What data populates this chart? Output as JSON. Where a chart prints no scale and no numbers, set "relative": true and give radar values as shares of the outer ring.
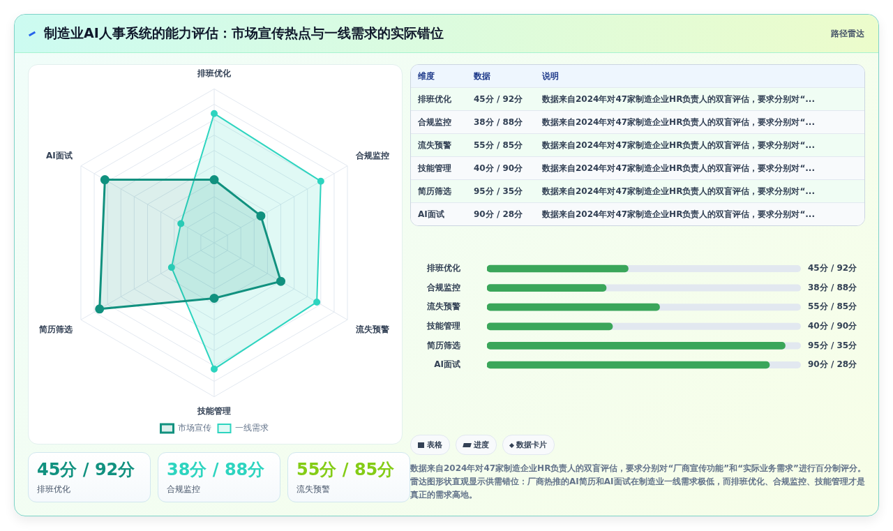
{
  "chart_data": [
    {
      "type": "other",
      "title": "制造业AI人事系统的能力评估：市场宣传热点与一线需求的实际错位",
      "subtitle": "路径雷达"
    },
    {
      "type": "radar",
      "relative": true,
      "categories": [
        "排班优化",
        "合规监控",
        "流失预警",
        "技能管理",
        "简历筛选",
        "AI面试"
      ],
      "series": [
        {
          "name": "市场宣传",
          "color": "#11917f",
          "values": [
            0.41,
            0.35,
            0.5,
            0.36,
            0.86,
            0.82
          ]
        },
        {
          "name": "一线需求",
          "color": "#2dd4bf",
          "values": [
            0.84,
            0.8,
            0.77,
            0.82,
            0.32,
            0.25
          ]
        }
      ],
      "grid": true,
      "legend": "bottom",
      "marker": "circle"
    },
    {
      "type": "other",
      "annotations": [
        "维度",
        "数据",
        "说明",
        "排班优化",
        "45分 / 92分",
        "数据来自2024年对47家制造企业HR负责人的双盲评估，要求分别对“...",
        "合规监控",
        "38分 / 88分",
        "数据来自2024年对47家制造企业HR负责人的双盲评估，要求分别对“...",
        "流失预警",
        "55分 / 85分",
        "数据来自2024年对47家制造企业HR负责人的双盲评估，要求分别对“...",
        "技能管理",
        "40分 / 90分",
        "数据来自2024年对47家制造企业HR负责人的双盲评估，要求分别对“...",
        "简历筛选",
        "95分 / 35分",
        "数据来自2024年对47家制造企业HR负责人的双盲评估，要求分别对“...",
        "AI面试",
        "90分 / 28分",
        "数据来自2024年对47家制造企业HR负责人的双盲评估，要求分别对“..."
      ]
    },
    {
      "type": "bar",
      "orientation": "horizontal",
      "categories": [
        "排班优化",
        "合规监控",
        "流失预警",
        "技能管理",
        "简历筛选",
        "AI面试"
      ],
      "values": [
        45,
        38,
        55,
        40,
        95,
        90
      ],
      "color": "#3aa65a",
      "xlim": [
        0,
        100
      ],
      "value_labels": [
        "45分 / 92分",
        "38分 / 88分",
        "55分 / 85分",
        "40分 / 90分",
        "95分 / 35分",
        "90分 / 28分"
      ],
      "tick_labels": "y"
    },
    {
      "type": "other",
      "annotations": [
        "表格",
        "进度",
        "数据卡片",
        "数据来自2024年对47家制造企业HR负责人的双盲评估，要求分别对“厂商宣传功能”和“实际业务需求”进行百分制评分。雷达图形状直观显示供需错位：厂商热推的AI简历和AI面试在制造业一线需求极低，而排班优化、合规监控、技能管理才是真正的需求高地。"
      ]
    },
    {
      "type": "other",
      "colors": [
        "#11917f",
        "#2dd4bf",
        "#84cc16"
      ],
      "annotations": [
        "45分 / 92分",
        "排班优化",
        "38分 / 88分",
        "合规监控",
        "55分 / 85分",
        "流失预警"
      ]
    }
  ]
}
